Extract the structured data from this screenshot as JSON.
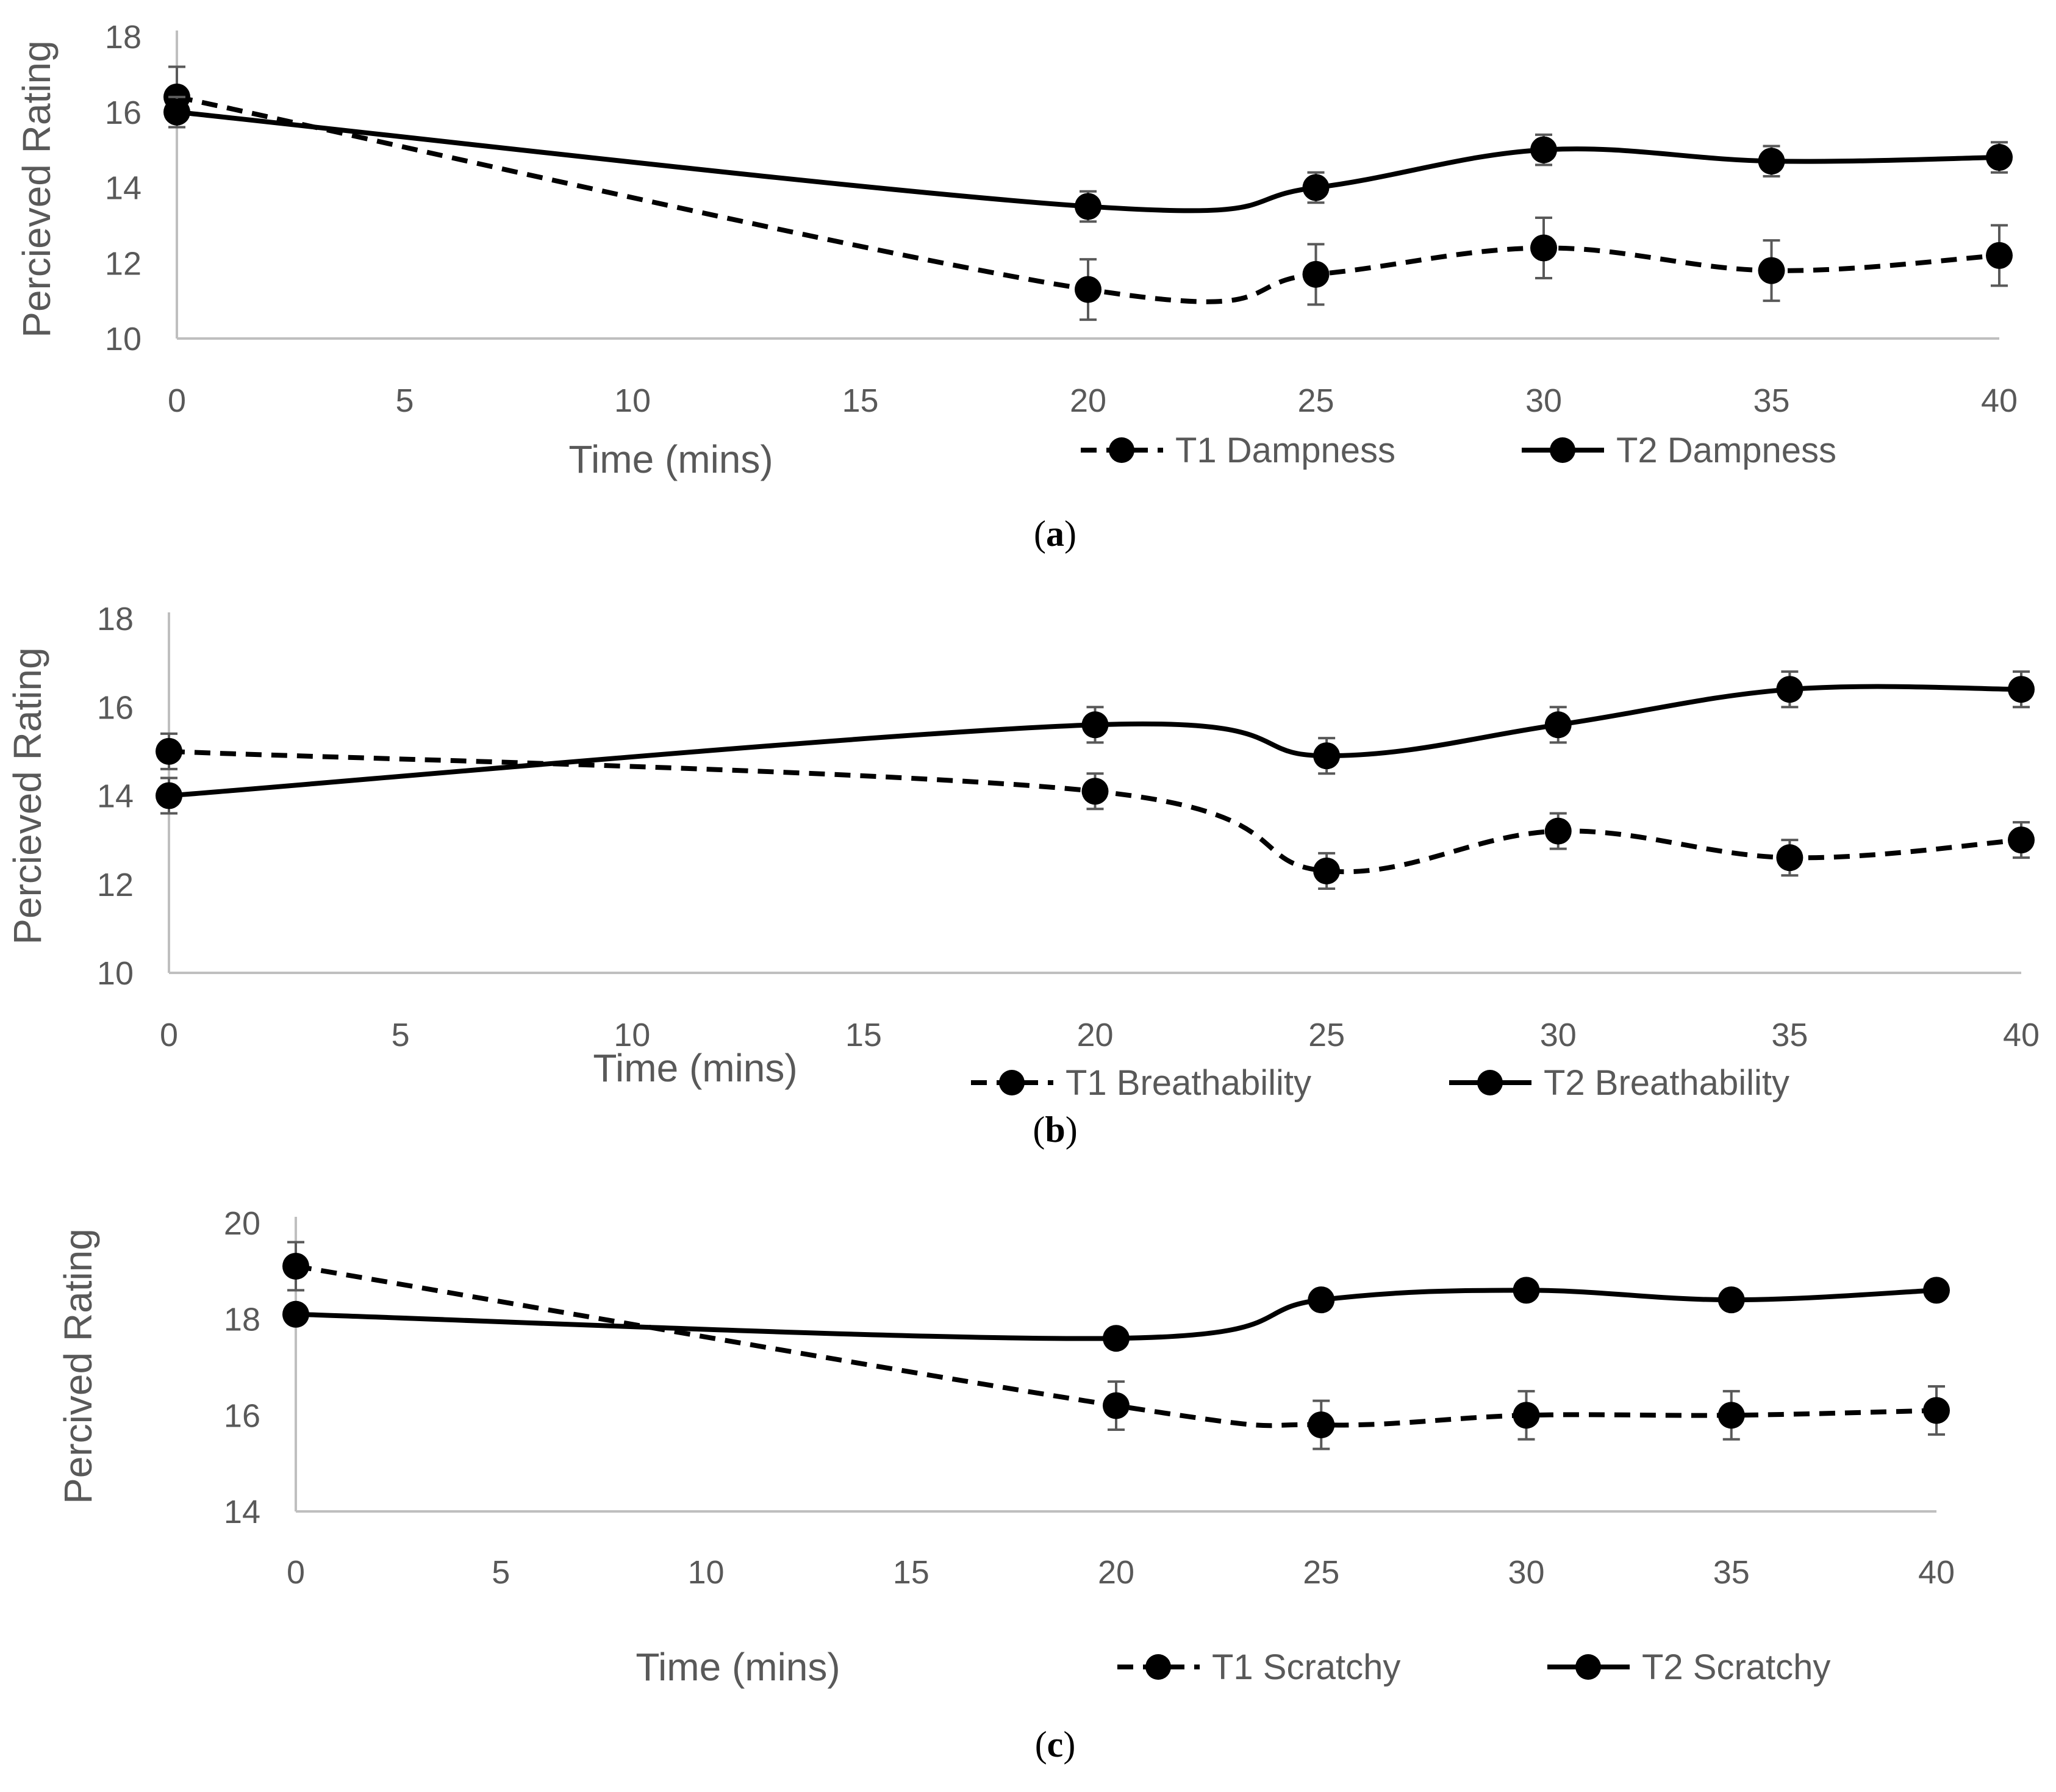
{
  "chart_data": [
    {
      "id": "a",
      "type": "line",
      "caption_letter": "a",
      "xlabel": "Time (mins)",
      "ylabel": "Percieved Rating",
      "xlim": [
        0,
        40
      ],
      "ylim": [
        10,
        18
      ],
      "xticks": [
        0,
        5,
        10,
        15,
        20,
        25,
        30,
        35,
        40
      ],
      "yticks": [
        10,
        12,
        14,
        16,
        18
      ],
      "grid": false,
      "legend_position": "bottom-right",
      "x": [
        0,
        20,
        25,
        30,
        35,
        40
      ],
      "series": [
        {
          "name": "T1 Dampness",
          "style": "dashed",
          "values": [
            16.4,
            11.3,
            11.7,
            12.4,
            11.8,
            12.2
          ],
          "errors": [
            0.8,
            0.8,
            0.8,
            0.8,
            0.8,
            0.8
          ]
        },
        {
          "name": "T2 Dampness",
          "style": "solid",
          "values": [
            16.0,
            13.5,
            14.0,
            15.0,
            14.7,
            14.8
          ],
          "errors": [
            0.4,
            0.4,
            0.4,
            0.4,
            0.4,
            0.4
          ]
        }
      ]
    },
    {
      "id": "b",
      "type": "line",
      "caption_letter": "b",
      "xlabel": "Time (mins)",
      "ylabel": "Percieved Rating",
      "xlim": [
        0,
        40
      ],
      "ylim": [
        10,
        18
      ],
      "xticks": [
        0,
        5,
        10,
        15,
        20,
        25,
        30,
        35,
        40
      ],
      "yticks": [
        10,
        12,
        14,
        16,
        18
      ],
      "grid": false,
      "legend_position": "bottom-right",
      "x": [
        0,
        20,
        25,
        30,
        35,
        40
      ],
      "series": [
        {
          "name": "T1 Breathability",
          "style": "dashed",
          "values": [
            15.0,
            14.1,
            12.3,
            13.2,
            12.6,
            13.0
          ],
          "errors": [
            0.4,
            0.4,
            0.4,
            0.4,
            0.4,
            0.4
          ]
        },
        {
          "name": "T2 Breathability",
          "style": "solid",
          "values": [
            14.0,
            15.6,
            14.9,
            15.6,
            16.4,
            16.4
          ],
          "errors": [
            0.4,
            0.4,
            0.4,
            0.4,
            0.4,
            0.4
          ]
        }
      ]
    },
    {
      "id": "c",
      "type": "line",
      "caption_letter": "c",
      "xlabel": "Time (mins)",
      "ylabel": "Percived Rating",
      "xlim": [
        0,
        40
      ],
      "ylim": [
        14,
        20
      ],
      "xticks": [
        0,
        5,
        10,
        15,
        20,
        25,
        30,
        35,
        40
      ],
      "yticks": [
        14,
        16,
        18,
        20
      ],
      "grid": false,
      "legend_position": "bottom-right",
      "x": [
        0,
        20,
        25,
        30,
        35,
        40
      ],
      "series": [
        {
          "name": "T1 Scratchy",
          "style": "dashed",
          "values": [
            19.1,
            16.2,
            15.8,
            16.0,
            16.0,
            16.1
          ],
          "errors": [
            0.5,
            0.5,
            0.5,
            0.5,
            0.5,
            0.5
          ]
        },
        {
          "name": "T2 Scratchy",
          "style": "solid",
          "values": [
            18.1,
            17.6,
            18.4,
            18.6,
            18.4,
            18.6
          ],
          "errors": [
            0.1,
            0.1,
            0.1,
            0.1,
            0.1,
            0.1
          ]
        }
      ]
    }
  ]
}
